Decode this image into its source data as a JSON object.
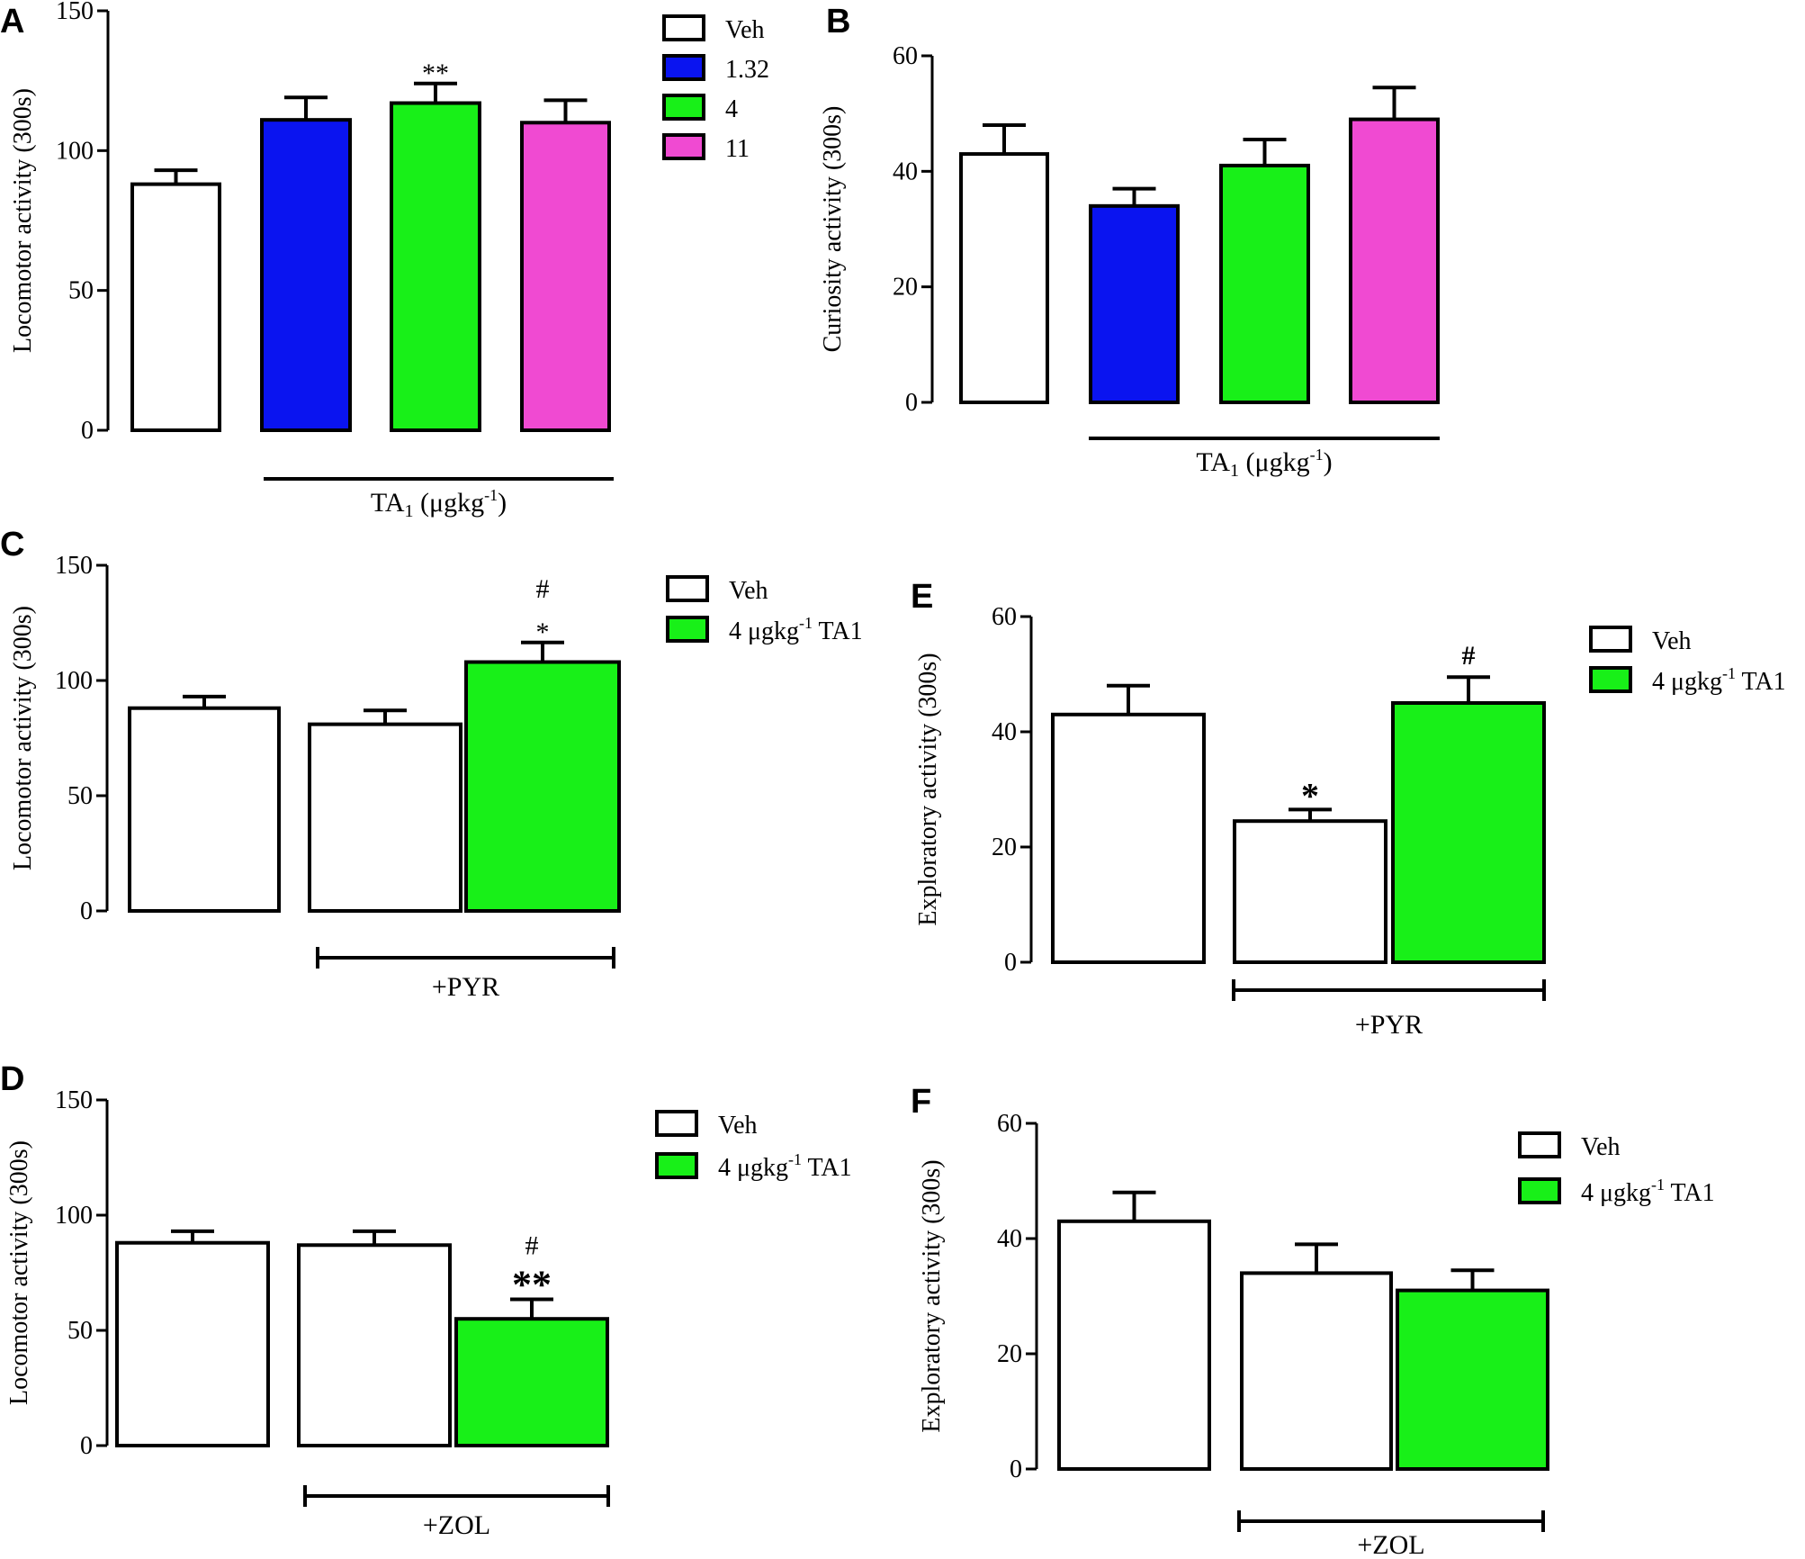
{
  "colors": {
    "veh": "#ffffff",
    "blue": "#0a14f0",
    "green": "#18f018",
    "pink": "#f04ad2",
    "stroke": "#000000"
  },
  "chart_data": [
    {
      "panel": "A",
      "type": "bar",
      "ylabel": "Locomotor activity (300s)",
      "ylim": [
        0,
        150
      ],
      "yticks": [
        "0",
        "50",
        "100",
        "150"
      ],
      "categories": [
        "Veh",
        "1.32",
        "4",
        "11"
      ],
      "values": [
        88,
        111,
        117,
        110
      ],
      "errors": [
        5,
        8,
        7,
        8
      ],
      "colors": [
        "#ffffff",
        "#0a14f0",
        "#18f018",
        "#f04ad2"
      ],
      "annotations": [
        "",
        "",
        "**",
        ""
      ],
      "legend": [
        {
          "label": "Veh",
          "color": "#ffffff"
        },
        {
          "label": "1.32",
          "color": "#0a14f0"
        },
        {
          "label": "4",
          "color": "#18f018"
        },
        {
          "label": "11",
          "color": "#f04ad2"
        }
      ],
      "group_label": {
        "main": "TA",
        "sub": "1",
        "rest": " (μgkg",
        "sup": "-1",
        "close": ")"
      }
    },
    {
      "panel": "B",
      "type": "bar",
      "ylabel": "Curiosity  activity (300s)",
      "ylim": [
        0,
        60
      ],
      "yticks": [
        "0",
        "20",
        "40",
        "60"
      ],
      "categories": [
        "Veh",
        "1.32",
        "4",
        "11"
      ],
      "values": [
        43,
        34,
        41,
        49
      ],
      "errors": [
        5,
        3,
        4.5,
        5.5
      ],
      "colors": [
        "#ffffff",
        "#0a14f0",
        "#18f018",
        "#f04ad2"
      ],
      "annotations": [
        "",
        "",
        "",
        ""
      ],
      "legend": [],
      "group_label": {
        "main": "TA",
        "sub": "1",
        "rest": " (μgkg",
        "sup": "-1",
        "close": ")"
      }
    },
    {
      "panel": "C",
      "type": "bar",
      "ylabel": "Locomotor activity (300s)",
      "ylim": [
        0,
        150
      ],
      "yticks": [
        "0",
        "50",
        "100",
        "150"
      ],
      "categories": [
        "Veh",
        "Veh +PYR",
        "4 μgkg-1 TA1 +PYR"
      ],
      "values": [
        88,
        81,
        108
      ],
      "errors": [
        5,
        6,
        8.5
      ],
      "colors": [
        "#ffffff",
        "#ffffff",
        "#18f018"
      ],
      "annotations": [
        "",
        "",
        "*|#"
      ],
      "legend": [
        {
          "label": "Veh",
          "color": "#ffffff"
        },
        {
          "label": "4 μgkg",
          "sup": "-1",
          "tail": " TA1",
          "color": "#18f018"
        }
      ],
      "group_label": {
        "main": "+PYR"
      }
    },
    {
      "panel": "E",
      "type": "bar",
      "ylabel": "Exploratory  activity (300s)",
      "ylim": [
        0,
        60
      ],
      "yticks": [
        "0",
        "20",
        "40",
        "60"
      ],
      "categories": [
        "Veh",
        "Veh +PYR",
        "4 μgkg-1 TA1 +PYR"
      ],
      "values": [
        43,
        24.5,
        45
      ],
      "errors": [
        5,
        2,
        4.5
      ],
      "colors": [
        "#ffffff",
        "#ffffff",
        "#18f018"
      ],
      "annotations": [
        "",
        "*",
        "#"
      ],
      "legend": [
        {
          "label": "Veh",
          "color": "#ffffff"
        },
        {
          "label": "4 μgkg",
          "sup": "-1",
          "tail": " TA1",
          "color": "#18f018"
        }
      ],
      "group_label": {
        "main": "+PYR"
      }
    },
    {
      "panel": "D",
      "type": "bar",
      "ylabel": "Locomotor activity (300s)",
      "ylim": [
        0,
        150
      ],
      "yticks": [
        "0",
        "50",
        "100",
        "150"
      ],
      "categories": [
        "Veh",
        "Veh +ZOL",
        "4 μgkg-1 TA1 +ZOL"
      ],
      "values": [
        88,
        87,
        55
      ],
      "errors": [
        5,
        6,
        8.5
      ],
      "colors": [
        "#ffffff",
        "#ffffff",
        "#18f018"
      ],
      "annotations": [
        "",
        "",
        "**|#"
      ],
      "legend": [
        {
          "label": "Veh",
          "color": "#ffffff"
        },
        {
          "label": "4 μgkg",
          "sup": "-1",
          "tail": " TA1",
          "color": "#18f018"
        }
      ],
      "group_label": {
        "main": "+ZOL"
      }
    },
    {
      "panel": "F",
      "type": "bar",
      "ylabel": "Exploratory  activity (300s)",
      "ylim": [
        0,
        60
      ],
      "yticks": [
        "0",
        "20",
        "40",
        "60"
      ],
      "categories": [
        "Veh",
        "Veh +ZOL",
        "4 μgkg-1 TA1 +ZOL"
      ],
      "values": [
        43,
        34,
        31
      ],
      "errors": [
        5,
        5,
        3.5
      ],
      "colors": [
        "#ffffff",
        "#ffffff",
        "#18f018"
      ],
      "annotations": [
        "",
        "",
        ""
      ],
      "legend": [
        {
          "label": "Veh",
          "color": "#ffffff"
        },
        {
          "label": "4 μgkg",
          "sup": "-1",
          "tail": " TA1",
          "color": "#18f018"
        }
      ],
      "group_label": {
        "main": "+ZOL"
      }
    }
  ]
}
